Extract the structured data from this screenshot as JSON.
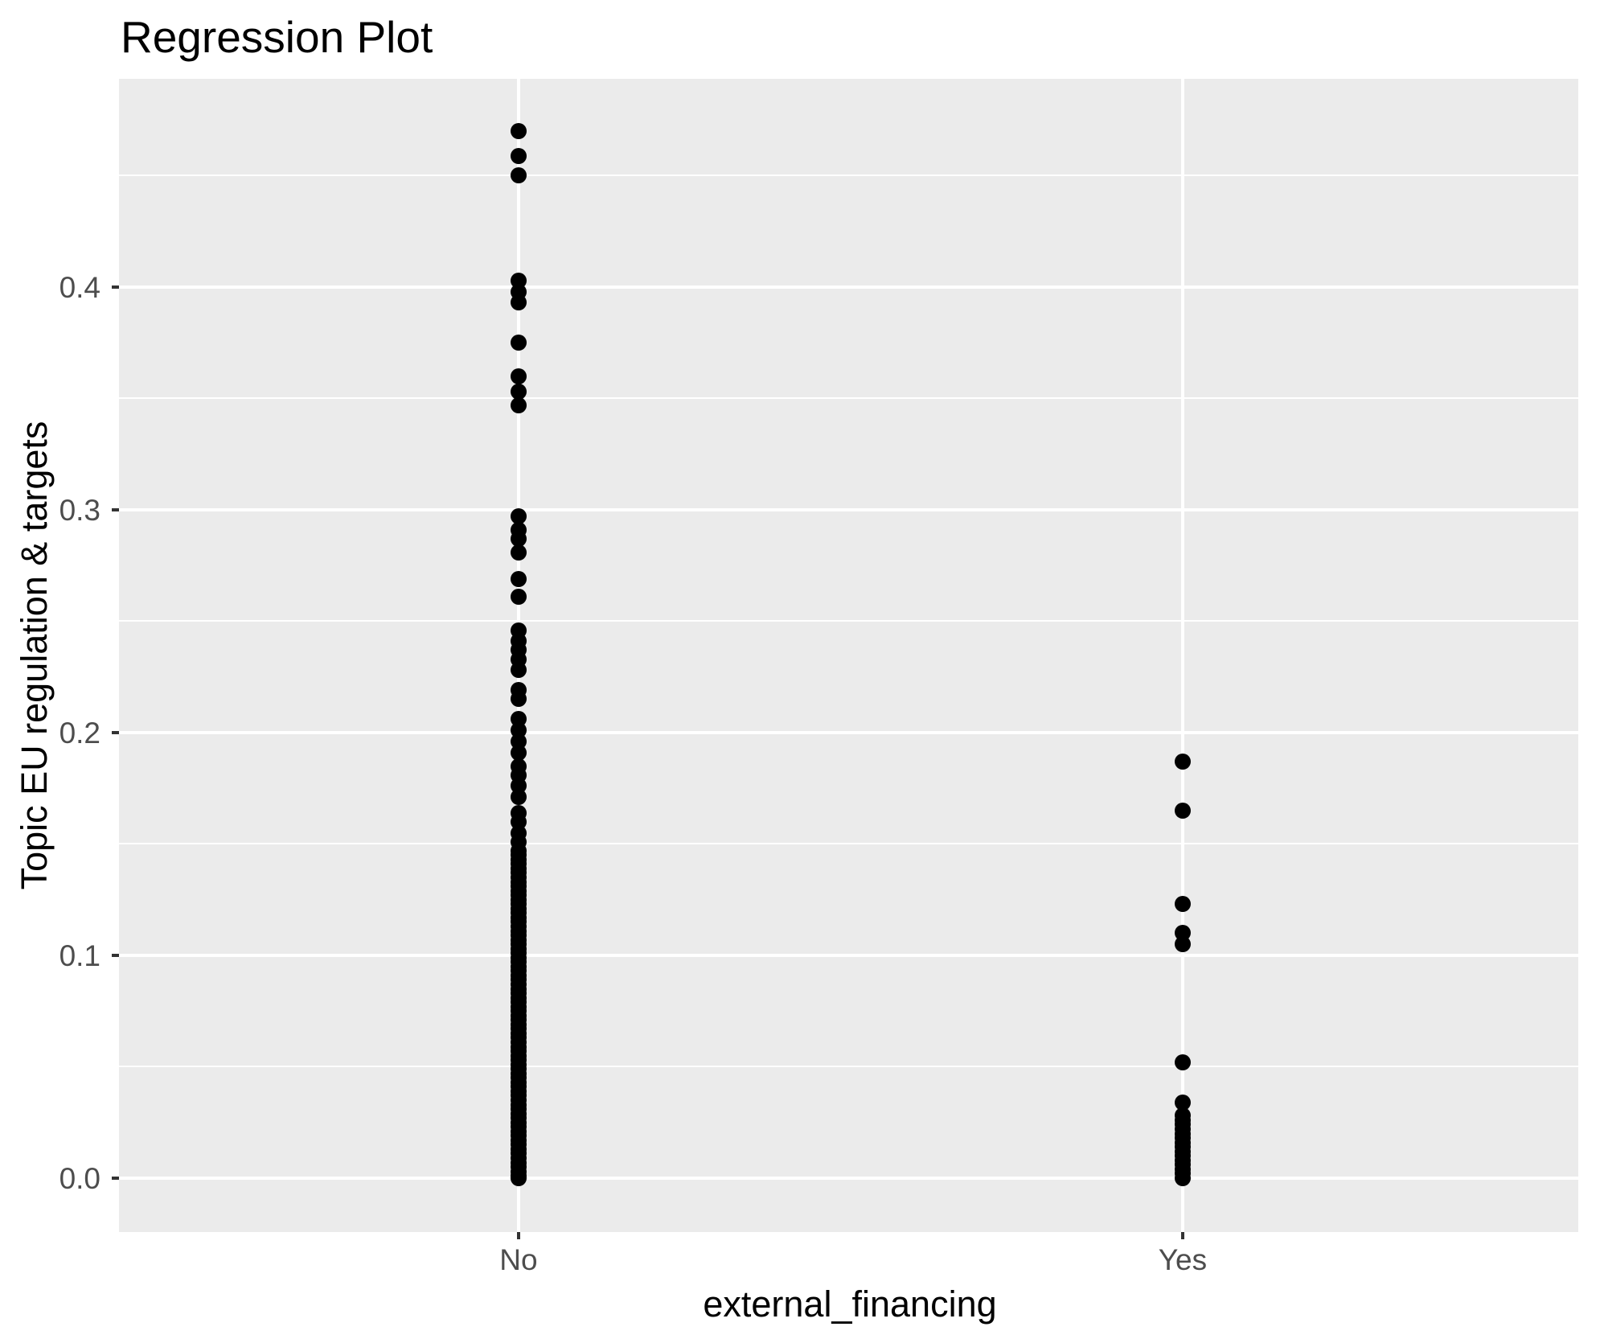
{
  "title": "Regression Plot",
  "axes": {
    "y": {
      "title": "Topic EU regulation & targets"
    },
    "x": {
      "title": "external_financing"
    }
  },
  "colors": {
    "panel_background": "#EBEBEB",
    "gridline": "#FFFFFF",
    "point": "#000000",
    "tick_label": "#4D4D4D",
    "tick_mark": "#333333",
    "title_text": "#000000"
  },
  "chart_data": {
    "type": "scatter",
    "title": "Regression Plot",
    "xlabel": "external_financing",
    "ylabel": "Topic EU regulation & targets",
    "categories": [
      "No",
      "Yes"
    ],
    "y_tick_labels": [
      "0.0",
      "0.1",
      "0.2",
      "0.3",
      "0.4"
    ],
    "y_major_ticks": [
      0.0,
      0.1,
      0.2,
      0.3,
      0.4
    ],
    "y_minor_ticks": [
      0.05,
      0.15,
      0.25,
      0.35,
      0.45
    ],
    "ylim": [
      -0.0242,
      0.4935
    ],
    "grid": "on",
    "legend": "none",
    "series": [
      {
        "name": "No",
        "values": [
          0.47,
          0.459,
          0.45,
          0.403,
          0.398,
          0.393,
          0.375,
          0.36,
          0.353,
          0.347,
          0.297,
          0.291,
          0.287,
          0.281,
          0.269,
          0.261,
          0.246,
          0.241,
          0.237,
          0.233,
          0.228,
          0.219,
          0.215,
          0.206,
          0.201,
          0.196,
          0.191,
          0.185,
          0.181,
          0.176,
          0.171,
          0.164,
          0.16,
          0.155,
          0.151,
          0.147,
          0.145,
          0.143,
          0.141,
          0.139,
          0.137,
          0.135,
          0.133,
          0.131,
          0.129,
          0.127,
          0.125,
          0.123,
          0.121,
          0.119,
          0.117,
          0.115,
          0.113,
          0.111,
          0.109,
          0.107,
          0.105,
          0.103,
          0.101,
          0.099,
          0.097,
          0.095,
          0.093,
          0.091,
          0.089,
          0.087,
          0.085,
          0.083,
          0.081,
          0.079,
          0.077,
          0.075,
          0.073,
          0.071,
          0.069,
          0.067,
          0.065,
          0.063,
          0.061,
          0.059,
          0.057,
          0.055,
          0.053,
          0.051,
          0.049,
          0.047,
          0.045,
          0.043,
          0.041,
          0.039,
          0.037,
          0.035,
          0.033,
          0.031,
          0.029,
          0.027,
          0.025,
          0.023,
          0.021,
          0.019,
          0.017,
          0.015,
          0.013,
          0.011,
          0.009,
          0.007,
          0.005,
          0.003,
          0.001,
          0.0
        ]
      },
      {
        "name": "Yes",
        "values": [
          0.187,
          0.165,
          0.123,
          0.11,
          0.105,
          0.052,
          0.034,
          0.028,
          0.026,
          0.024,
          0.022,
          0.02,
          0.018,
          0.016,
          0.014,
          0.012,
          0.01,
          0.008,
          0.006,
          0.004,
          0.002,
          0.0
        ]
      }
    ]
  }
}
